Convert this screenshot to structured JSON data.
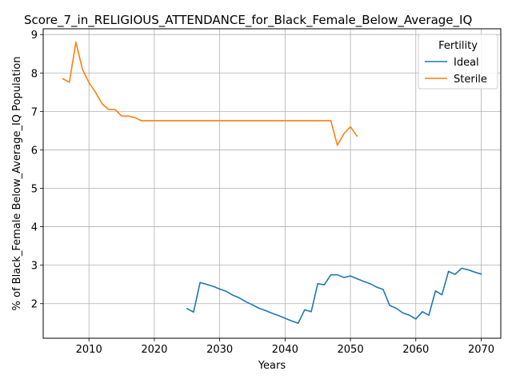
{
  "chart_data": {
    "type": "line",
    "title": "Score_7_in_RELIGIOUS_ATTENDANCE_for_Black_Female_Below_Average_IQ",
    "xlabel": "Years",
    "ylabel": "% of Black_Female Below_Average_IQ Population",
    "xlim": [
      2003,
      2073
    ],
    "ylim": [
      1.1,
      9.15
    ],
    "x_ticks": [
      2010,
      2020,
      2030,
      2040,
      2050,
      2060,
      2070
    ],
    "y_ticks": [
      2,
      3,
      4,
      5,
      6,
      7,
      8,
      9
    ],
    "grid": true,
    "legend": {
      "title": "Fertility",
      "placement": "top-right"
    },
    "series": [
      {
        "name": "Ideal",
        "color": "#1f77b4",
        "x": [
          2025,
          2026,
          2027,
          2028,
          2029,
          2030,
          2031,
          2032,
          2033,
          2034,
          2035,
          2036,
          2037,
          2038,
          2039,
          2040,
          2041,
          2042,
          2043,
          2044,
          2045,
          2046,
          2047,
          2048,
          2049,
          2050,
          2051,
          2052,
          2053,
          2054,
          2055,
          2056,
          2057,
          2058,
          2059,
          2060,
          2061,
          2062,
          2063,
          2064,
          2065,
          2066,
          2067,
          2068,
          2069,
          2070
        ],
        "y": [
          1.87,
          1.78,
          2.55,
          2.5,
          2.45,
          2.38,
          2.32,
          2.22,
          2.15,
          2.05,
          1.97,
          1.88,
          1.82,
          1.75,
          1.69,
          1.62,
          1.55,
          1.49,
          1.84,
          1.79,
          2.52,
          2.49,
          2.75,
          2.75,
          2.68,
          2.72,
          2.65,
          2.58,
          2.52,
          2.43,
          2.37,
          1.95,
          1.88,
          1.76,
          1.7,
          1.6,
          1.79,
          1.7,
          2.33,
          2.23,
          2.84,
          2.76,
          2.92,
          2.88,
          2.82,
          2.77
        ]
      },
      {
        "name": "Sterile",
        "color": "#ff7f0e",
        "x": [
          2006,
          2007,
          2008,
          2009,
          2010,
          2011,
          2012,
          2013,
          2014,
          2015,
          2016,
          2017,
          2018,
          2019,
          2020,
          2021,
          2022,
          2023,
          2024,
          2025,
          2026,
          2027,
          2028,
          2029,
          2030,
          2031,
          2032,
          2033,
          2034,
          2035,
          2036,
          2037,
          2038,
          2039,
          2040,
          2041,
          2042,
          2043,
          2044,
          2045,
          2046,
          2047,
          2048,
          2049,
          2050,
          2051
        ],
        "y": [
          7.85,
          7.76,
          8.8,
          8.1,
          7.75,
          7.5,
          7.2,
          7.05,
          7.05,
          6.88,
          6.88,
          6.84,
          6.76,
          6.76,
          6.76,
          6.76,
          6.76,
          6.76,
          6.76,
          6.76,
          6.76,
          6.76,
          6.76,
          6.76,
          6.76,
          6.76,
          6.76,
          6.76,
          6.76,
          6.76,
          6.76,
          6.76,
          6.76,
          6.76,
          6.76,
          6.76,
          6.76,
          6.76,
          6.76,
          6.76,
          6.76,
          6.76,
          6.12,
          6.42,
          6.6,
          6.36
        ]
      }
    ]
  }
}
